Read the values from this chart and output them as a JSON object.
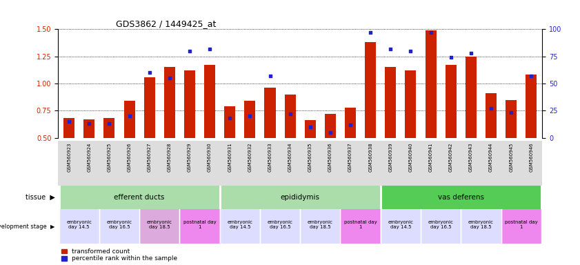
{
  "title": "GDS3862 / 1449425_at",
  "samples": [
    "GSM560923",
    "GSM560924",
    "GSM560925",
    "GSM560926",
    "GSM560927",
    "GSM560928",
    "GSM560929",
    "GSM560930",
    "GSM560931",
    "GSM560932",
    "GSM560933",
    "GSM560934",
    "GSM560935",
    "GSM560936",
    "GSM560937",
    "GSM560938",
    "GSM560939",
    "GSM560940",
    "GSM560941",
    "GSM560942",
    "GSM560943",
    "GSM560944",
    "GSM560945",
    "GSM560946"
  ],
  "transformed_count": [
    0.68,
    0.67,
    0.68,
    0.84,
    1.06,
    1.15,
    1.12,
    1.17,
    0.79,
    0.84,
    0.96,
    0.9,
    0.66,
    0.72,
    0.78,
    1.38,
    1.15,
    1.12,
    1.49,
    1.17,
    1.25,
    0.91,
    0.85,
    1.08
  ],
  "percentile_rank": [
    15,
    13,
    13,
    20,
    60,
    55,
    80,
    82,
    18,
    20,
    57,
    22,
    10,
    5,
    12,
    97,
    82,
    80,
    97,
    74,
    78,
    27,
    23,
    57
  ],
  "bar_color": "#cc2200",
  "dot_color": "#2222cc",
  "ylim_left": [
    0.5,
    1.5
  ],
  "ylim_right": [
    0,
    100
  ],
  "yticks_left": [
    0.5,
    0.75,
    1.0,
    1.25,
    1.5
  ],
  "yticks_right": [
    0,
    25,
    50,
    75,
    100
  ],
  "bg_color": "#ffffff",
  "tissue_groups": [
    {
      "label": "efferent ducts",
      "start": 0,
      "end": 7,
      "color": "#aaddaa"
    },
    {
      "label": "epididymis",
      "start": 8,
      "end": 15,
      "color": "#aaddaa"
    },
    {
      "label": "vas deferens",
      "start": 16,
      "end": 23,
      "color": "#55cc55"
    }
  ],
  "dev_stage_groups": [
    {
      "label": "embryonic\nday 14.5",
      "start": 0,
      "end": 1,
      "color": "#ddddff"
    },
    {
      "label": "embryonic\nday 16.5",
      "start": 2,
      "end": 3,
      "color": "#ddddff"
    },
    {
      "label": "embryonic\nday 18.5",
      "start": 4,
      "end": 5,
      "color": "#ddaadd"
    },
    {
      "label": "postnatal day\n1",
      "start": 6,
      "end": 7,
      "color": "#ee88ee"
    },
    {
      "label": "embryonic\nday 14.5",
      "start": 8,
      "end": 9,
      "color": "#ddddff"
    },
    {
      "label": "embryonic\nday 16.5",
      "start": 10,
      "end": 11,
      "color": "#ddddff"
    },
    {
      "label": "embryonic\nday 18.5",
      "start": 12,
      "end": 13,
      "color": "#ddddff"
    },
    {
      "label": "postnatal day\n1",
      "start": 14,
      "end": 15,
      "color": "#ee88ee"
    },
    {
      "label": "embryonic\nday 14.5",
      "start": 16,
      "end": 17,
      "color": "#ddddff"
    },
    {
      "label": "embryonic\nday 16.5",
      "start": 18,
      "end": 19,
      "color": "#ddddff"
    },
    {
      "label": "embryonic\nday 18.5",
      "start": 20,
      "end": 21,
      "color": "#ddddff"
    },
    {
      "label": "postnatal day\n1",
      "start": 22,
      "end": 23,
      "color": "#ee88ee"
    }
  ],
  "legend_items": [
    {
      "label": "transformed count",
      "color": "#cc2200"
    },
    {
      "label": "percentile rank within the sample",
      "color": "#2222cc"
    }
  ]
}
